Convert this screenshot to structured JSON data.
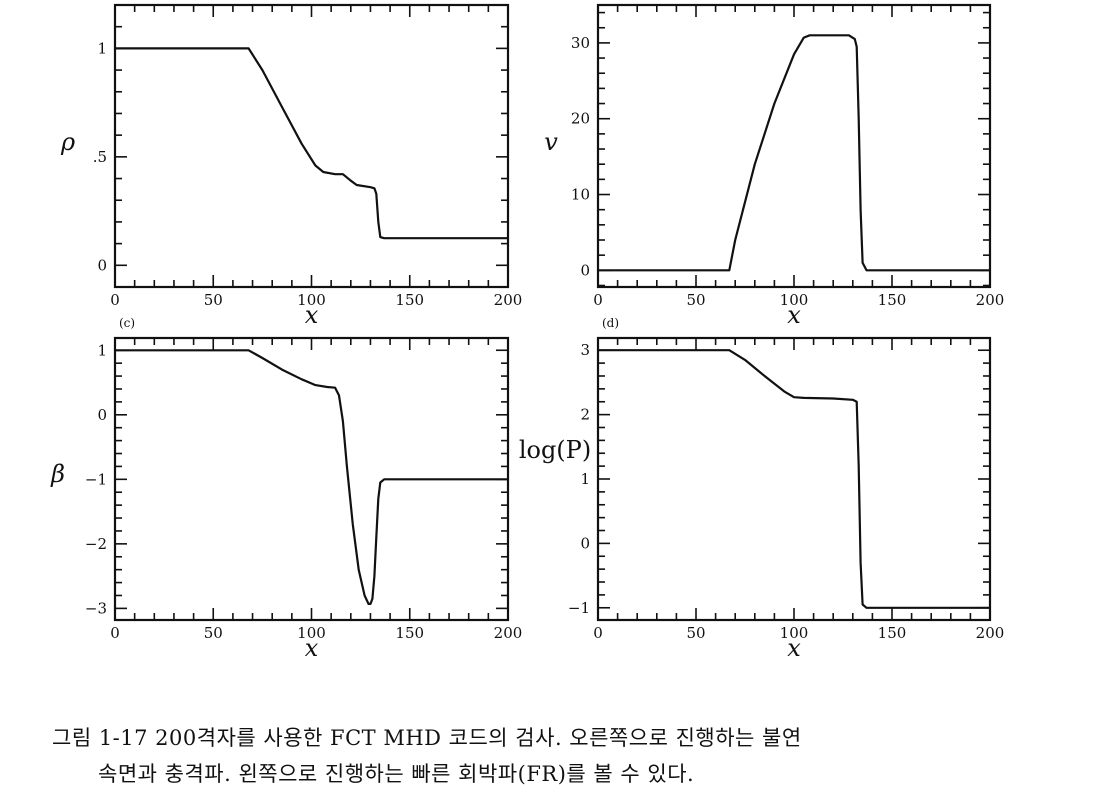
{
  "chart_data": [
    {
      "type": "line",
      "ylabel": "ρ",
      "xlabel": "x",
      "xlim": [
        0,
        200
      ],
      "ylim": [
        -0.1,
        1.2
      ],
      "xticks": [
        0,
        50,
        100,
        150,
        200
      ],
      "xtick_labels": [
        "0",
        "50",
        "100",
        "150",
        "200"
      ],
      "yticks": [
        0,
        0.5,
        1
      ],
      "ytick_labels": [
        "0",
        ".5",
        "1"
      ],
      "panel_label": "(c)",
      "x": [
        0,
        68,
        75,
        85,
        95,
        102,
        106,
        112,
        116,
        120,
        123,
        130,
        132,
        133,
        134,
        135,
        137,
        200
      ],
      "y": [
        1,
        1,
        0.9,
        0.73,
        0.56,
        0.46,
        0.43,
        0.42,
        0.42,
        0.39,
        0.37,
        0.36,
        0.355,
        0.33,
        0.2,
        0.13,
        0.125,
        0.125
      ]
    },
    {
      "type": "line",
      "ylabel": "v",
      "xlabel": "x",
      "xlim": [
        0,
        200
      ],
      "ylim": [
        -2.2,
        35
      ],
      "xticks": [
        0,
        50,
        100,
        150,
        200
      ],
      "xtick_labels": [
        "0",
        "50",
        "100",
        "150",
        "200"
      ],
      "yticks": [
        0,
        10,
        20,
        30
      ],
      "ytick_labels": [
        "0",
        "10",
        "20",
        "30"
      ],
      "panel_label": "(d)",
      "x": [
        0,
        67,
        70,
        80,
        90,
        100,
        105,
        108,
        120,
        128,
        131,
        132,
        133,
        134,
        135,
        137,
        200
      ],
      "y": [
        0,
        0,
        4,
        14,
        22,
        28.5,
        30.7,
        31,
        31,
        31,
        30.5,
        29.5,
        20,
        8,
        1,
        0,
        0
      ]
    },
    {
      "type": "line",
      "ylabel": "β",
      "xlabel": "x",
      "xlim": [
        0,
        200
      ],
      "ylim": [
        -3.18,
        1.19
      ],
      "xticks": [
        0,
        50,
        100,
        150,
        200
      ],
      "xtick_labels": [
        "0",
        "50",
        "100",
        "150",
        "200"
      ],
      "yticks": [
        -3,
        -2,
        -1,
        0,
        1
      ],
      "ytick_labels": [
        "−3",
        "−2",
        "−1",
        "0",
        "1"
      ],
      "x": [
        0,
        68,
        75,
        85,
        95,
        102,
        108,
        112,
        114,
        116,
        118,
        121,
        124,
        127,
        129,
        130,
        131,
        132,
        133,
        134,
        135,
        137,
        200
      ],
      "y": [
        1,
        1,
        0.88,
        0.7,
        0.55,
        0.46,
        0.43,
        0.42,
        0.3,
        -0.1,
        -0.8,
        -1.7,
        -2.4,
        -2.8,
        -2.93,
        -2.93,
        -2.85,
        -2.5,
        -1.9,
        -1.3,
        -1.05,
        -1,
        -1
      ]
    },
    {
      "type": "line",
      "ylabel": "log(P)",
      "xlabel": "x",
      "xlim": [
        0,
        200
      ],
      "ylim": [
        -1.19,
        3.19
      ],
      "xticks": [
        0,
        50,
        100,
        150,
        200
      ],
      "xtick_labels": [
        "0",
        "50",
        "100",
        "150",
        "200"
      ],
      "yticks": [
        -1,
        0,
        1,
        2,
        3
      ],
      "ytick_labels": [
        "−1",
        "0",
        "1",
        "2",
        "3"
      ],
      "x": [
        0,
        67,
        75,
        85,
        95,
        100,
        105,
        120,
        130,
        132,
        133,
        134,
        135,
        137,
        200
      ],
      "y": [
        3,
        3,
        2.85,
        2.6,
        2.36,
        2.27,
        2.26,
        2.25,
        2.23,
        2.2,
        1.2,
        -0.3,
        -0.95,
        -1,
        -1
      ]
    }
  ],
  "caption": {
    "line1": "그림 1-17  200격자를 사용한 FCT MHD 코드의 검사. 오른쪽으로 진행하는 불연",
    "line2": "속면과 충격파. 왼쪽으로 진행하는 빠른 회박파(FR)를 볼 수 있다."
  }
}
